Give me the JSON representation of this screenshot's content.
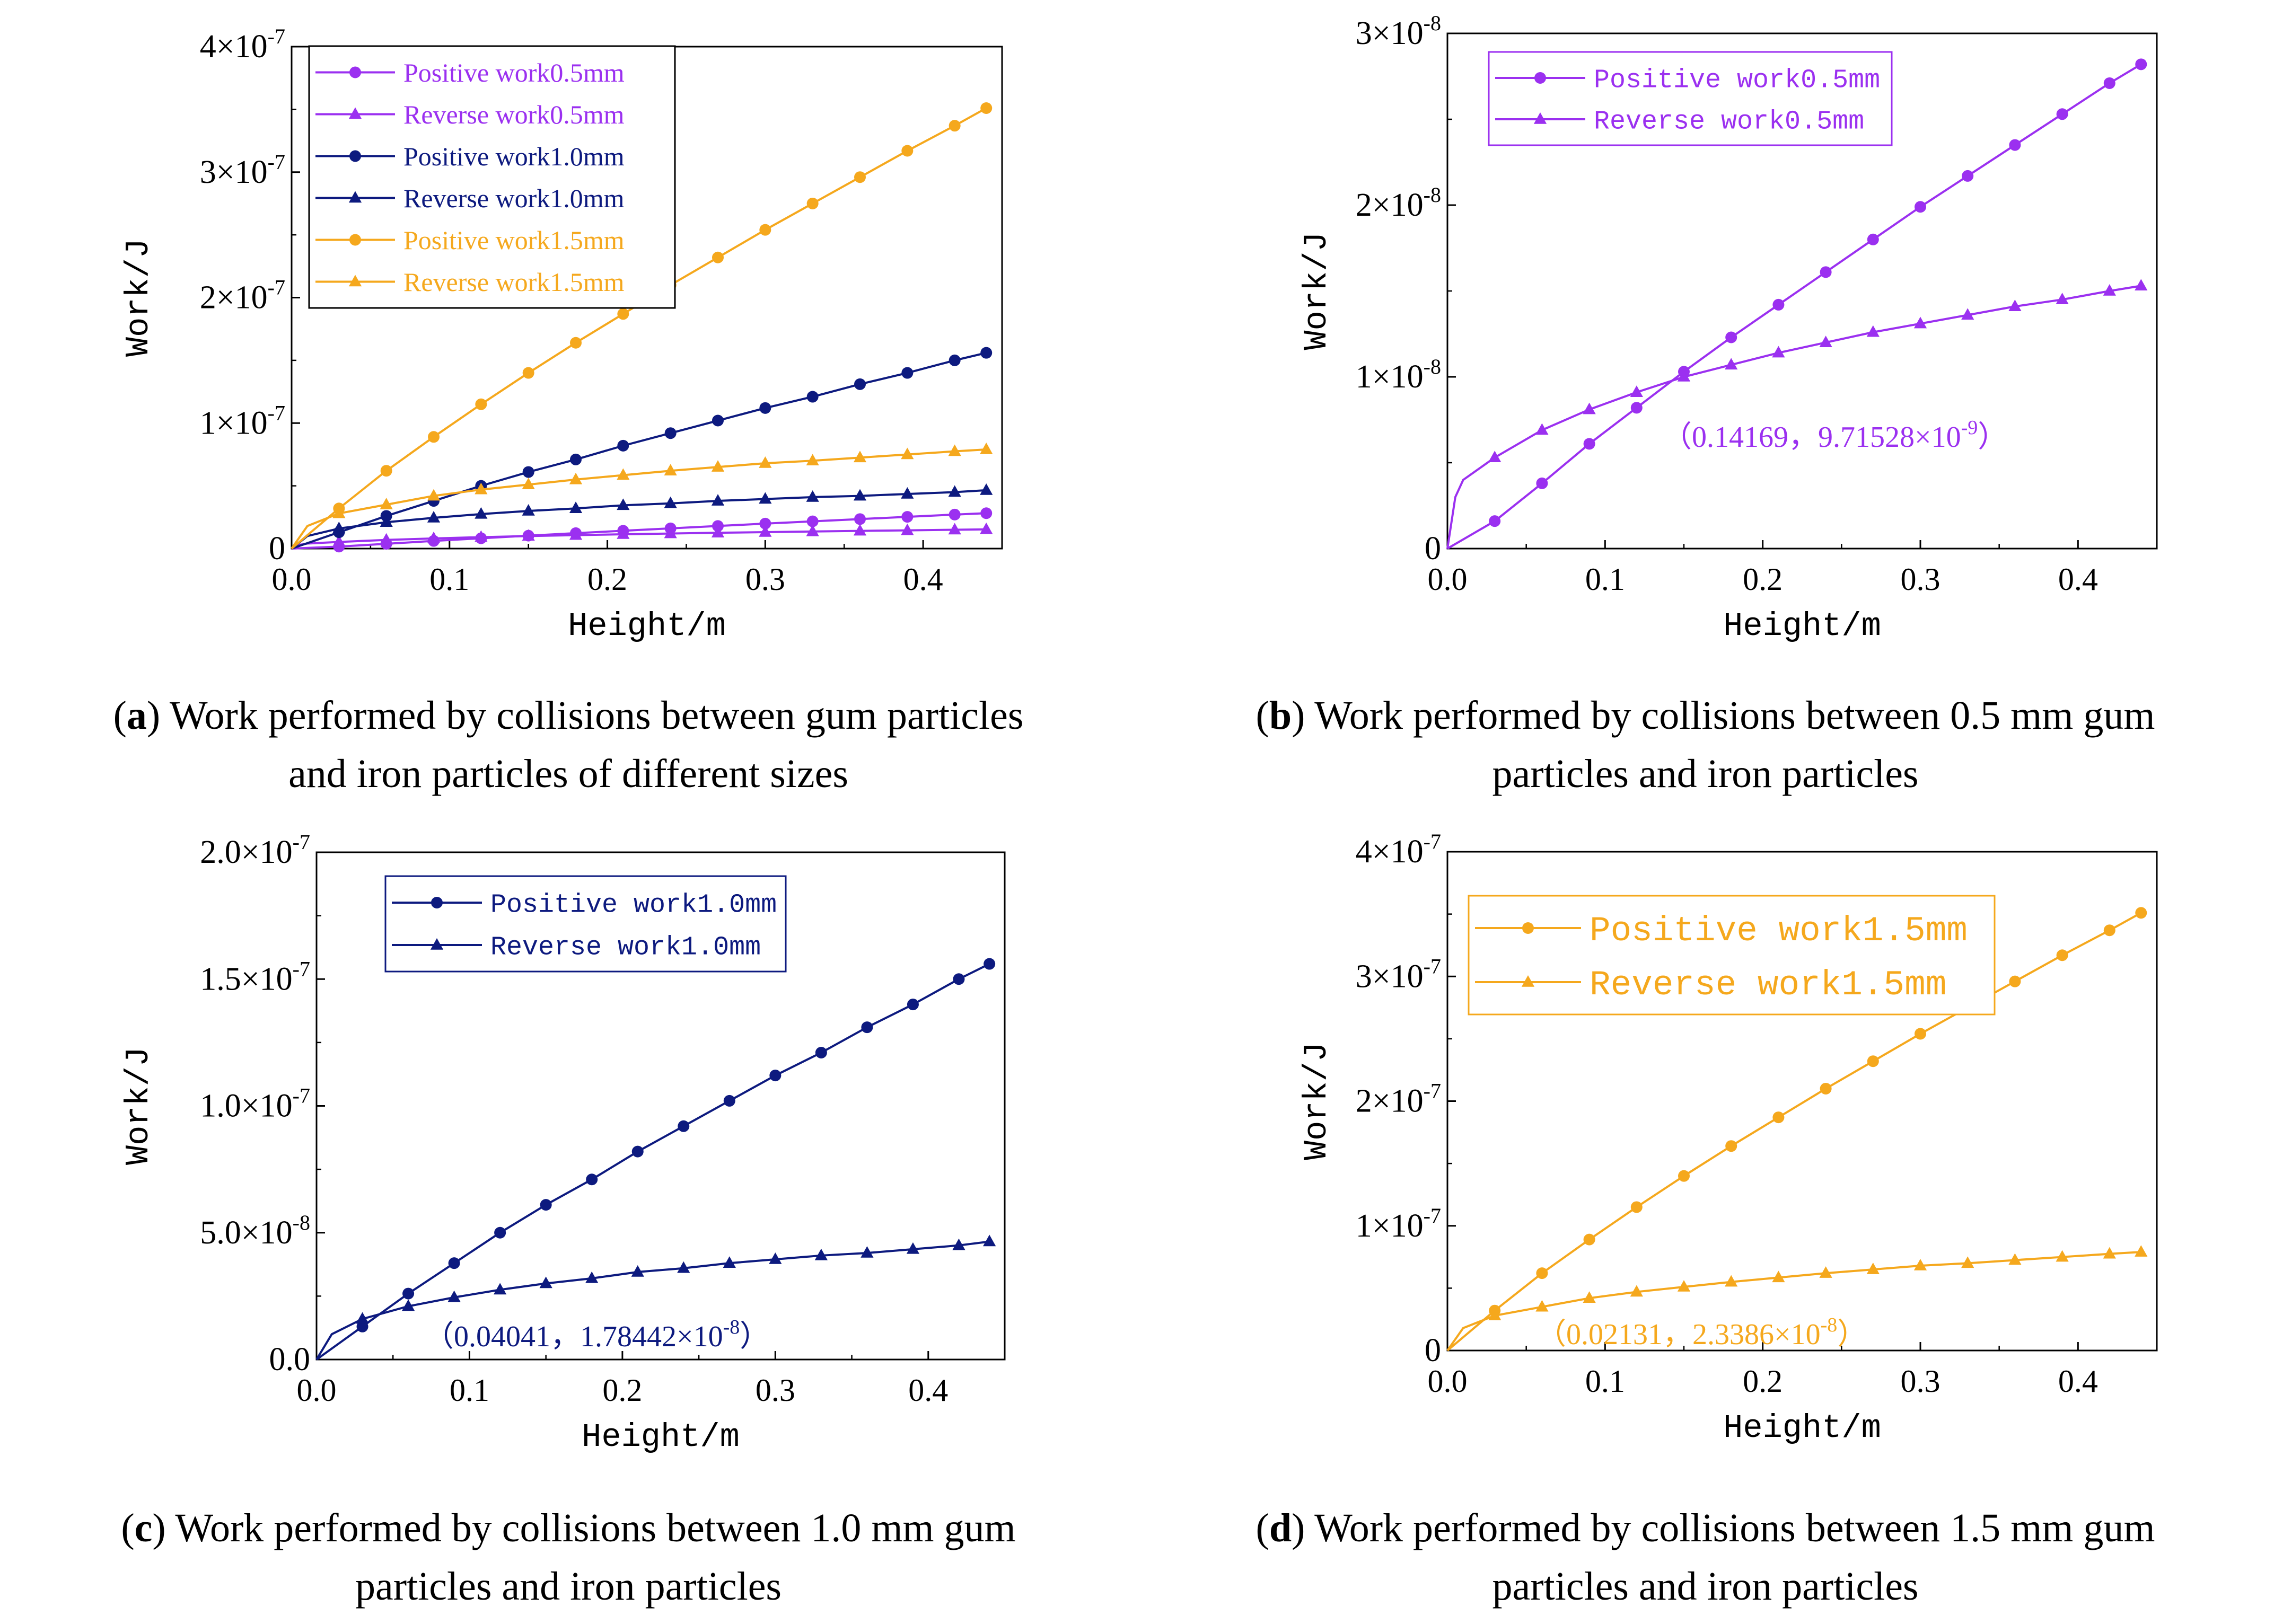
{
  "figure": {
    "panels": [
      {
        "id": "a",
        "caption": {
          "letter": "a",
          "line1": " Work performed by collisions between gum particles",
          "line2": "and iron particles of different sizes"
        }
      },
      {
        "id": "b",
        "caption": {
          "letter": "b",
          "line1": " Work performed by collisions between 0.5 mm gum",
          "line2": "particles and iron particles"
        }
      },
      {
        "id": "c",
        "caption": {
          "letter": "c",
          "line1": " Work performed by collisions between 1.0 mm gum",
          "line2": "particles and iron particles"
        }
      },
      {
        "id": "d",
        "caption": {
          "letter": "d",
          "line1": " Work performed by collisions between 1.5 mm gum",
          "line2": "particles and iron particles"
        }
      }
    ]
  },
  "colors": {
    "p05": "#9B30F0",
    "p10": "#0D1A7F",
    "p15": "#F5A81D",
    "axis": "#000000"
  },
  "chart_data": [
    {
      "panel": "a",
      "type": "line",
      "xlabel": "Height/m",
      "ylabel": "Work/J",
      "xlim": [
        0,
        0.45
      ],
      "ylim": [
        0,
        4e-07
      ],
      "xticks": [
        "0.0",
        "0.1",
        "0.2",
        "0.3",
        "0.4"
      ],
      "yticks": [
        {
          "value": 0,
          "label": "0",
          "exp": ""
        },
        {
          "value": 1e-07,
          "label": "1×10",
          "exp": "-7"
        },
        {
          "value": 2e-07,
          "label": "2×10",
          "exp": "-7"
        },
        {
          "value": 3e-07,
          "label": "3×10",
          "exp": "-7"
        },
        {
          "value": 4e-07,
          "label": "4×10",
          "exp": "-7"
        }
      ],
      "legend_position": "top-left",
      "series": [
        {
          "name": "Positive work0.5mm",
          "color": "#9B30F0",
          "marker": "circle",
          "x": [
            0,
            0.03,
            0.06,
            0.09,
            0.12,
            0.15,
            0.18,
            0.21,
            0.24,
            0.27,
            0.3,
            0.33,
            0.36,
            0.39,
            0.42,
            0.44
          ],
          "y": [
            0,
            1.6e-09,
            3.8e-09,
            6.1e-09,
            8.2e-09,
            1.03e-08,
            1.23e-08,
            1.42e-08,
            1.61e-08,
            1.8e-08,
            1.99e-08,
            2.17e-08,
            2.35e-08,
            2.53e-08,
            2.71e-08,
            2.82e-08
          ]
        },
        {
          "name": "Reverse work0.5mm",
          "color": "#9B30F0",
          "marker": "triangle",
          "x": [
            0,
            0.005,
            0.01,
            0.03,
            0.06,
            0.09,
            0.12,
            0.15,
            0.18,
            0.21,
            0.24,
            0.27,
            0.3,
            0.33,
            0.36,
            0.39,
            0.42,
            0.44
          ],
          "y": [
            0,
            3e-09,
            4e-09,
            5.3e-09,
            6.9e-09,
            8.1e-09,
            9.1e-09,
            1e-08,
            1.07e-08,
            1.14e-08,
            1.2e-08,
            1.26e-08,
            1.31e-08,
            1.36e-08,
            1.41e-08,
            1.45e-08,
            1.5e-08,
            1.53e-08
          ]
        },
        {
          "name": "Positive work1.0mm",
          "color": "#0D1A7F",
          "marker": "circle",
          "x": [
            0,
            0.03,
            0.06,
            0.09,
            0.12,
            0.15,
            0.18,
            0.21,
            0.24,
            0.27,
            0.3,
            0.33,
            0.36,
            0.39,
            0.42,
            0.44
          ],
          "y": [
            0,
            1.3e-08,
            2.6e-08,
            3.8e-08,
            5e-08,
            6.1e-08,
            7.1e-08,
            8.2e-08,
            9.2e-08,
            1.02e-07,
            1.12e-07,
            1.21e-07,
            1.31e-07,
            1.4e-07,
            1.5e-07,
            1.56e-07
          ]
        },
        {
          "name": "Reverse work1.0mm",
          "color": "#0D1A7F",
          "marker": "triangle",
          "x": [
            0,
            0.01,
            0.03,
            0.06,
            0.09,
            0.12,
            0.15,
            0.18,
            0.21,
            0.24,
            0.27,
            0.3,
            0.33,
            0.36,
            0.39,
            0.42,
            0.44
          ],
          "y": [
            0,
            1e-08,
            1.6e-08,
            2.1e-08,
            2.45e-08,
            2.75e-08,
            3e-08,
            3.2e-08,
            3.45e-08,
            3.6e-08,
            3.8e-08,
            3.95e-08,
            4.1e-08,
            4.2e-08,
            4.35e-08,
            4.5e-08,
            4.65e-08
          ]
        },
        {
          "name": "Positive work1.5mm",
          "color": "#F5A81D",
          "marker": "circle",
          "x": [
            0,
            0.03,
            0.06,
            0.09,
            0.12,
            0.15,
            0.18,
            0.21,
            0.24,
            0.27,
            0.3,
            0.33,
            0.36,
            0.39,
            0.42,
            0.44
          ],
          "y": [
            0,
            3.2e-08,
            6.2e-08,
            8.9e-08,
            1.15e-07,
            1.4e-07,
            1.64e-07,
            1.87e-07,
            2.1e-07,
            2.32e-07,
            2.54e-07,
            2.75e-07,
            2.96e-07,
            3.17e-07,
            3.37e-07,
            3.51e-07
          ]
        },
        {
          "name": "Reverse work1.5mm",
          "color": "#F5A81D",
          "marker": "triangle",
          "x": [
            0,
            0.01,
            0.03,
            0.06,
            0.09,
            0.12,
            0.15,
            0.18,
            0.21,
            0.24,
            0.27,
            0.3,
            0.33,
            0.36,
            0.39,
            0.42,
            0.44
          ],
          "y": [
            0,
            1.8e-08,
            2.8e-08,
            3.5e-08,
            4.2e-08,
            4.7e-08,
            5.1e-08,
            5.5e-08,
            5.85e-08,
            6.2e-08,
            6.5e-08,
            6.8e-08,
            7e-08,
            7.25e-08,
            7.5e-08,
            7.75e-08,
            7.9e-08
          ]
        }
      ]
    },
    {
      "panel": "b",
      "type": "line",
      "xlabel": "Height/m",
      "ylabel": "Work/J",
      "xlim": [
        0,
        0.45
      ],
      "ylim": [
        0,
        3e-08
      ],
      "xticks": [
        "0.0",
        "0.1",
        "0.2",
        "0.3",
        "0.4"
      ],
      "yticks": [
        {
          "value": 0,
          "label": "0",
          "exp": ""
        },
        {
          "value": 1e-08,
          "label": "1×10",
          "exp": "-8"
        },
        {
          "value": 2e-08,
          "label": "2×10",
          "exp": "-8"
        },
        {
          "value": 3e-08,
          "label": "3×10",
          "exp": "-8"
        }
      ],
      "legend_position": "top-left",
      "annotation": {
        "text": "（0.14169，9.71528×10",
        "exp": "-9",
        "tail": "）",
        "x": 0.14169,
        "y": 9.71528e-09
      },
      "series": [
        {
          "name": "Positive work0.5mm",
          "color": "#9B30F0",
          "marker": "circle",
          "x": [
            0,
            0.03,
            0.06,
            0.09,
            0.12,
            0.15,
            0.18,
            0.21,
            0.24,
            0.27,
            0.3,
            0.33,
            0.36,
            0.39,
            0.42,
            0.44
          ],
          "y": [
            0,
            1.6e-09,
            3.8e-09,
            6.1e-09,
            8.2e-09,
            1.03e-08,
            1.23e-08,
            1.42e-08,
            1.61e-08,
            1.8e-08,
            1.99e-08,
            2.17e-08,
            2.35e-08,
            2.53e-08,
            2.71e-08,
            2.82e-08
          ]
        },
        {
          "name": "Reverse work0.5mm",
          "color": "#9B30F0",
          "marker": "triangle",
          "x": [
            0,
            0.005,
            0.01,
            0.03,
            0.06,
            0.09,
            0.12,
            0.15,
            0.18,
            0.21,
            0.24,
            0.27,
            0.3,
            0.33,
            0.36,
            0.39,
            0.42,
            0.44
          ],
          "y": [
            0,
            3e-09,
            4e-09,
            5.3e-09,
            6.9e-09,
            8.1e-09,
            9.1e-09,
            1e-08,
            1.07e-08,
            1.14e-08,
            1.2e-08,
            1.26e-08,
            1.31e-08,
            1.36e-08,
            1.41e-08,
            1.45e-08,
            1.5e-08,
            1.53e-08
          ]
        }
      ]
    },
    {
      "panel": "c",
      "type": "line",
      "xlabel": "Height/m",
      "ylabel": "Work/J",
      "xlim": [
        0,
        0.45
      ],
      "ylim": [
        0,
        2e-07
      ],
      "xticks": [
        "0.0",
        "0.1",
        "0.2",
        "0.3",
        "0.4"
      ],
      "yticks": [
        {
          "value": 0,
          "label": "0.0",
          "exp": ""
        },
        {
          "value": 5e-08,
          "label": "5.0×10",
          "exp": "-8"
        },
        {
          "value": 1e-07,
          "label": "1.0×10",
          "exp": "-7"
        },
        {
          "value": 1.5e-07,
          "label": "1.5×10",
          "exp": "-7"
        },
        {
          "value": 2e-07,
          "label": "2.0×10",
          "exp": "-7"
        }
      ],
      "legend_position": "top-right",
      "annotation": {
        "text": "（0.04041，1.78442×10",
        "exp": "-8",
        "tail": "）",
        "x": 0.04041,
        "y": 1.78442e-08
      },
      "series": [
        {
          "name": "Positive work1.0mm",
          "color": "#0D1A7F",
          "marker": "circle",
          "x": [
            0,
            0.03,
            0.06,
            0.09,
            0.12,
            0.15,
            0.18,
            0.21,
            0.24,
            0.27,
            0.3,
            0.33,
            0.36,
            0.39,
            0.42,
            0.44
          ],
          "y": [
            0,
            1.3e-08,
            2.6e-08,
            3.8e-08,
            5e-08,
            6.1e-08,
            7.1e-08,
            8.2e-08,
            9.2e-08,
            1.02e-07,
            1.12e-07,
            1.21e-07,
            1.31e-07,
            1.4e-07,
            1.5e-07,
            1.56e-07
          ]
        },
        {
          "name": "Reverse work1.0mm",
          "color": "#0D1A7F",
          "marker": "triangle",
          "x": [
            0,
            0.01,
            0.03,
            0.06,
            0.09,
            0.12,
            0.15,
            0.18,
            0.21,
            0.24,
            0.27,
            0.3,
            0.33,
            0.36,
            0.39,
            0.42,
            0.44
          ],
          "y": [
            0,
            1e-08,
            1.6e-08,
            2.1e-08,
            2.45e-08,
            2.75e-08,
            3e-08,
            3.2e-08,
            3.45e-08,
            3.6e-08,
            3.8e-08,
            3.95e-08,
            4.1e-08,
            4.2e-08,
            4.35e-08,
            4.5e-08,
            4.65e-08
          ]
        }
      ]
    },
    {
      "panel": "d",
      "type": "line",
      "xlabel": "Height/m",
      "ylabel": "Work/J",
      "xlim": [
        0,
        0.45
      ],
      "ylim": [
        0,
        4e-07
      ],
      "xticks": [
        "0.0",
        "0.1",
        "0.2",
        "0.3",
        "0.4"
      ],
      "yticks": [
        {
          "value": 0,
          "label": "0",
          "exp": ""
        },
        {
          "value": 1e-07,
          "label": "1×10",
          "exp": "-7"
        },
        {
          "value": 2e-07,
          "label": "2×10",
          "exp": "-7"
        },
        {
          "value": 3e-07,
          "label": "3×10",
          "exp": "-7"
        },
        {
          "value": 4e-07,
          "label": "4×10",
          "exp": "-7"
        }
      ],
      "legend_position": "top-left",
      "annotation": {
        "text": "（0.02131，2.3386×10",
        "exp": "-8",
        "tail": "）",
        "x": 0.02131,
        "y": 2.3386e-08
      },
      "series": [
        {
          "name": "Positive work1.5mm",
          "color": "#F5A81D",
          "marker": "circle",
          "x": [
            0,
            0.03,
            0.06,
            0.09,
            0.12,
            0.15,
            0.18,
            0.21,
            0.24,
            0.27,
            0.3,
            0.33,
            0.36,
            0.39,
            0.42,
            0.44
          ],
          "y": [
            0,
            3.2e-08,
            6.2e-08,
            8.9e-08,
            1.15e-07,
            1.4e-07,
            1.64e-07,
            1.87e-07,
            2.1e-07,
            2.32e-07,
            2.54e-07,
            2.75e-07,
            2.96e-07,
            3.17e-07,
            3.37e-07,
            3.51e-07
          ]
        },
        {
          "name": "Reverse work1.5mm",
          "color": "#F5A81D",
          "marker": "triangle",
          "x": [
            0,
            0.01,
            0.03,
            0.06,
            0.09,
            0.12,
            0.15,
            0.18,
            0.21,
            0.24,
            0.27,
            0.3,
            0.33,
            0.36,
            0.39,
            0.42,
            0.44
          ],
          "y": [
            0,
            1.8e-08,
            2.8e-08,
            3.5e-08,
            4.2e-08,
            4.7e-08,
            5.1e-08,
            5.5e-08,
            5.85e-08,
            6.2e-08,
            6.5e-08,
            6.8e-08,
            7e-08,
            7.25e-08,
            7.5e-08,
            7.75e-08,
            7.9e-08
          ]
        }
      ]
    }
  ]
}
